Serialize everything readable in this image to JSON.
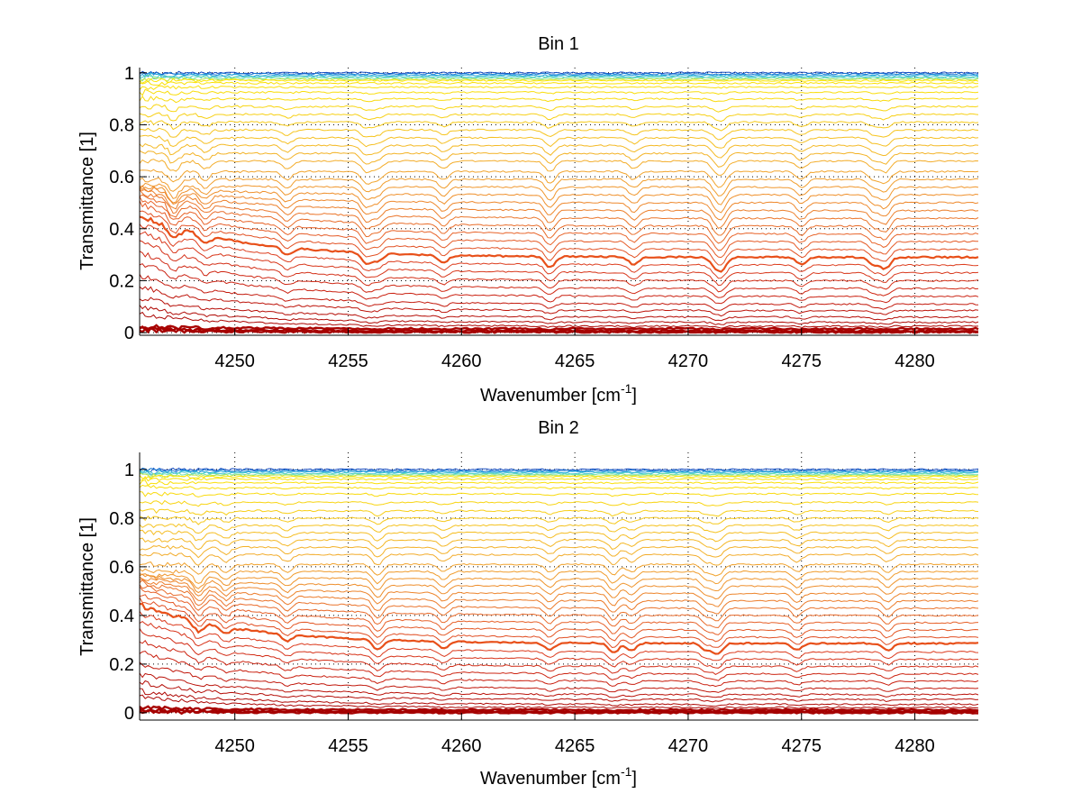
{
  "figure": {
    "background": "#ffffff"
  },
  "chart_data": [
    {
      "type": "line",
      "title": "Bin 1",
      "xlabel": "Wavenumber [cm",
      "xlabel_superscript": "-1",
      "xlabel_suffix": "]",
      "ylabel": "Transmittance [1]",
      "xlim": [
        4245.8,
        4282.8
      ],
      "ylim": [
        -0.01,
        1.02
      ],
      "xticks": [
        4250,
        4255,
        4260,
        4265,
        4270,
        4275,
        4280
      ],
      "xtick_labels": [
        "4250",
        "4255",
        "4260",
        "4265",
        "4270",
        "4275",
        "4280"
      ],
      "yticks": [
        0,
        0.2,
        0.4,
        0.6,
        0.8,
        1
      ],
      "ytick_labels": [
        "0",
        "0.2",
        "0.4",
        "0.6",
        "0.8",
        "1"
      ],
      "grid": true,
      "series_count": 44,
      "colormap": [
        "#a50000",
        "#c81e0f",
        "#dc3c1e",
        "#e8642a",
        "#ee8a2c",
        "#f2a82e",
        "#f5c020",
        "#f8d810",
        "#fce600",
        "#60e0c0",
        "#20a0e0",
        "#1040c0"
      ],
      "absorption_lines": [
        4247.3,
        4248.7,
        4252.3,
        4255.8,
        4256.3,
        4259.2,
        4263.9,
        4267.6,
        4271.2,
        4271.5,
        4275.0,
        4278.2,
        4278.7
      ],
      "series_levels_at_right": [
        1.0,
        0.995,
        0.99,
        0.985,
        0.98,
        0.975,
        0.97,
        0.96,
        0.945,
        0.925,
        0.9,
        0.87,
        0.84,
        0.81,
        0.78,
        0.75,
        0.72,
        0.69,
        0.66,
        0.62,
        0.59,
        0.56,
        0.53,
        0.5,
        0.47,
        0.44,
        0.41,
        0.38,
        0.35,
        0.32,
        0.29,
        0.26,
        0.23,
        0.2,
        0.17,
        0.14,
        0.11,
        0.085,
        0.06,
        0.04,
        0.025,
        0.015,
        0.007,
        0.002
      ],
      "highlighted_series_level": 0.29
    },
    {
      "type": "line",
      "title": "Bin 2",
      "xlabel": "Wavenumber [cm",
      "xlabel_superscript": "-1",
      "xlabel_suffix": "]",
      "ylabel": "Transmittance [1]",
      "xlim": [
        4245.8,
        4282.8
      ],
      "ylim": [
        -0.03,
        1.07
      ],
      "xticks": [
        4250,
        4255,
        4260,
        4265,
        4270,
        4275,
        4280
      ],
      "xtick_labels": [
        "4250",
        "4255",
        "4260",
        "4265",
        "4270",
        "4275",
        "4280"
      ],
      "yticks": [
        0,
        0.2,
        0.4,
        0.6,
        0.8,
        1
      ],
      "ytick_labels": [
        "0",
        "0.2",
        "0.4",
        "0.6",
        "0.8",
        "1"
      ],
      "grid": true,
      "series_count": 44,
      "colormap": [
        "#a50000",
        "#c81e0f",
        "#dc3c1e",
        "#e8642a",
        "#ee8a2c",
        "#f2a82e",
        "#f5c020",
        "#f8d810",
        "#fce600",
        "#60e0c0",
        "#20a0e0",
        "#1040c0"
      ],
      "absorption_lines": [
        4248.4,
        4249.6,
        4252.3,
        4256.3,
        4259.2,
        4263.9,
        4266.7,
        4267.5,
        4270.8,
        4271.3,
        4274.8,
        4278.8
      ],
      "series_levels_at_right": [
        1.0,
        0.995,
        0.99,
        0.985,
        0.98,
        0.975,
        0.97,
        0.96,
        0.945,
        0.925,
        0.9,
        0.865,
        0.83,
        0.8,
        0.77,
        0.74,
        0.71,
        0.68,
        0.65,
        0.61,
        0.58,
        0.55,
        0.52,
        0.49,
        0.46,
        0.43,
        0.4,
        0.37,
        0.34,
        0.31,
        0.285,
        0.25,
        0.22,
        0.19,
        0.16,
        0.13,
        0.1,
        0.075,
        0.055,
        0.035,
        0.022,
        0.012,
        0.005,
        0.0
      ],
      "highlighted_series_level": 0.285
    }
  ]
}
